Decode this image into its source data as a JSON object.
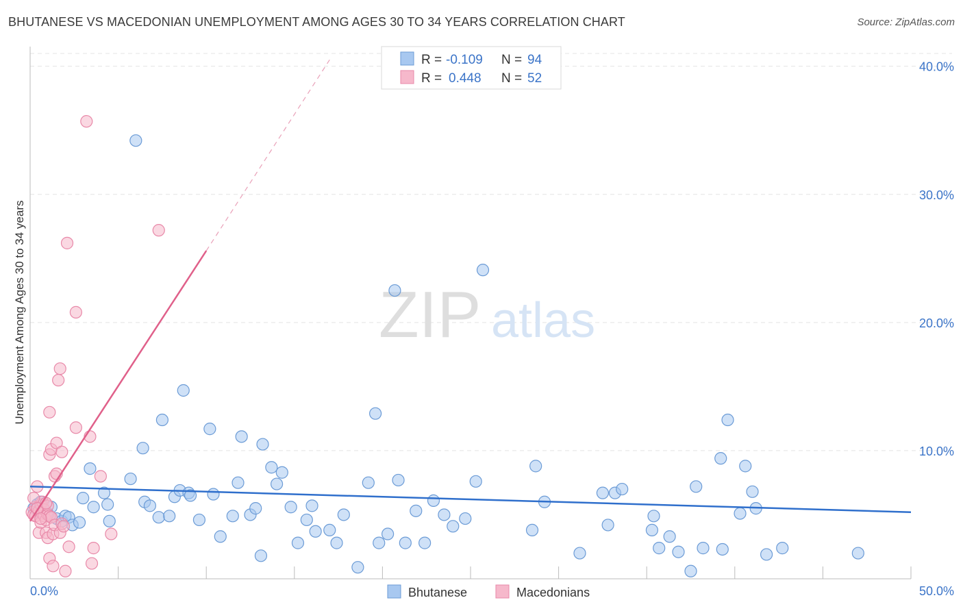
{
  "header": {
    "title": "BHUTANESE VS MACEDONIAN UNEMPLOYMENT AMONG AGES 30 TO 34 YEARS CORRELATION CHART",
    "source": "Source: ZipAtlas.com"
  },
  "watermark": {
    "zip": "ZIP",
    "atlas": "atlas"
  },
  "legend_top": {
    "rows": [
      {
        "r_label": "R =",
        "r_value": "-0.109",
        "n_label": "N =",
        "n_value": "94"
      },
      {
        "r_label": "R =",
        "r_value": "0.448",
        "n_label": "N =",
        "n_value": "52"
      }
    ]
  },
  "legend_bottom": {
    "items": [
      "Bhutanese",
      "Macedonians"
    ]
  },
  "colors": {
    "blue_fill": "#a8c8f0",
    "blue_stroke": "#6b9bd6",
    "blue_line": "#2f6fcc",
    "pink_fill": "#f6b8cb",
    "pink_stroke": "#e888a8",
    "pink_line": "#e0608a",
    "axis_text": "#3b74c8",
    "grid": "#e4e4e4"
  },
  "chart_data": {
    "type": "scatter",
    "title": "BHUTANESE VS MACEDONIAN UNEMPLOYMENT AMONG AGES 30 TO 34 YEARS CORRELATION CHART",
    "xlabel": "",
    "ylabel": "Unemployment Among Ages 30 to 34 years",
    "xlim": [
      0,
      50
    ],
    "ylim": [
      0,
      41
    ],
    "x_tick_labels": [
      "0.0%",
      "50.0%"
    ],
    "y_ticks": [
      10,
      20,
      30,
      40
    ],
    "y_tick_labels": [
      "10.0%",
      "20.0%",
      "30.0%",
      "40.0%"
    ],
    "series": [
      {
        "name": "Bhutanese",
        "r": -0.109,
        "n": 94,
        "trend": {
          "x0": 0,
          "y0": 7.2,
          "x1": 50,
          "y1": 5.2
        },
        "points": [
          [
            0.2,
            5.5
          ],
          [
            0.4,
            5.8
          ],
          [
            0.5,
            5.2
          ],
          [
            0.6,
            6.0
          ],
          [
            0.8,
            5.4
          ],
          [
            1.0,
            5.1
          ],
          [
            1.2,
            5.6
          ],
          [
            1.5,
            4.7
          ],
          [
            1.8,
            4.5
          ],
          [
            2.0,
            4.9
          ],
          [
            2.2,
            4.8
          ],
          [
            2.4,
            4.2
          ],
          [
            2.8,
            4.4
          ],
          [
            3.0,
            6.3
          ],
          [
            3.4,
            8.6
          ],
          [
            3.6,
            5.6
          ],
          [
            4.2,
            6.7
          ],
          [
            4.4,
            5.8
          ],
          [
            4.5,
            4.5
          ],
          [
            5.7,
            7.8
          ],
          [
            6.0,
            34.2
          ],
          [
            6.4,
            10.2
          ],
          [
            6.5,
            6.0
          ],
          [
            6.8,
            5.7
          ],
          [
            7.3,
            4.8
          ],
          [
            7.5,
            12.4
          ],
          [
            7.9,
            4.9
          ],
          [
            8.2,
            6.4
          ],
          [
            8.5,
            6.9
          ],
          [
            8.7,
            14.7
          ],
          [
            9.0,
            6.7
          ],
          [
            9.1,
            6.5
          ],
          [
            9.6,
            4.6
          ],
          [
            10.2,
            11.7
          ],
          [
            10.4,
            6.6
          ],
          [
            10.8,
            3.3
          ],
          [
            11.5,
            4.9
          ],
          [
            11.8,
            7.5
          ],
          [
            12.0,
            11.1
          ],
          [
            12.5,
            5.0
          ],
          [
            12.8,
            5.5
          ],
          [
            13.1,
            1.8
          ],
          [
            13.2,
            10.5
          ],
          [
            13.7,
            8.7
          ],
          [
            14.0,
            7.4
          ],
          [
            14.3,
            8.3
          ],
          [
            14.8,
            5.6
          ],
          [
            15.2,
            2.8
          ],
          [
            15.7,
            4.6
          ],
          [
            16.0,
            5.7
          ],
          [
            16.2,
            3.7
          ],
          [
            17.0,
            3.8
          ],
          [
            17.4,
            2.8
          ],
          [
            17.8,
            5.0
          ],
          [
            18.6,
            0.9
          ],
          [
            19.2,
            7.5
          ],
          [
            19.6,
            12.9
          ],
          [
            19.8,
            2.8
          ],
          [
            20.3,
            3.5
          ],
          [
            20.7,
            22.5
          ],
          [
            20.9,
            7.7
          ],
          [
            21.3,
            2.8
          ],
          [
            21.9,
            5.3
          ],
          [
            22.4,
            2.8
          ],
          [
            22.9,
            6.1
          ],
          [
            23.5,
            5.0
          ],
          [
            24.0,
            4.1
          ],
          [
            24.7,
            4.7
          ],
          [
            25.3,
            7.6
          ],
          [
            25.7,
            24.1
          ],
          [
            28.5,
            3.8
          ],
          [
            28.7,
            8.8
          ],
          [
            29.2,
            6.0
          ],
          [
            31.2,
            2.0
          ],
          [
            32.5,
            6.7
          ],
          [
            32.8,
            4.2
          ],
          [
            33.2,
            6.7
          ],
          [
            33.6,
            7.0
          ],
          [
            35.3,
            3.8
          ],
          [
            35.4,
            4.9
          ],
          [
            35.7,
            2.4
          ],
          [
            36.3,
            3.3
          ],
          [
            36.8,
            2.1
          ],
          [
            37.5,
            0.6
          ],
          [
            37.8,
            7.2
          ],
          [
            38.2,
            2.4
          ],
          [
            39.2,
            9.4
          ],
          [
            39.3,
            2.3
          ],
          [
            39.6,
            12.4
          ],
          [
            40.3,
            5.1
          ],
          [
            40.6,
            8.8
          ],
          [
            41.0,
            6.8
          ],
          [
            41.2,
            5.5
          ],
          [
            41.8,
            1.9
          ],
          [
            42.7,
            2.4
          ],
          [
            47.0,
            2.0
          ]
        ]
      },
      {
        "name": "Macedonians",
        "r": 0.448,
        "n": 52,
        "trend": {
          "x0": 0,
          "y0": 4.5,
          "x1": 10,
          "y1": 25.6
        },
        "trend_extension": {
          "x0": 10,
          "y0": 25.6,
          "x1": 17,
          "y1": 40.5
        },
        "points": [
          [
            0.1,
            5.2
          ],
          [
            0.2,
            5.0
          ],
          [
            0.3,
            5.6
          ],
          [
            0.3,
            4.9
          ],
          [
            0.4,
            7.2
          ],
          [
            0.5,
            5.3
          ],
          [
            0.5,
            3.6
          ],
          [
            0.6,
            5.8
          ],
          [
            0.6,
            4.4
          ],
          [
            0.7,
            5.1
          ],
          [
            0.7,
            6.0
          ],
          [
            0.8,
            4.9
          ],
          [
            0.8,
            5.4
          ],
          [
            0.9,
            4.6
          ],
          [
            0.9,
            3.6
          ],
          [
            1.0,
            5.0
          ],
          [
            1.0,
            5.7
          ],
          [
            1.0,
            3.2
          ],
          [
            1.1,
            1.6
          ],
          [
            1.1,
            4.9
          ],
          [
            1.1,
            13.0
          ],
          [
            1.1,
            9.7
          ],
          [
            1.2,
            10.1
          ],
          [
            1.2,
            4.8
          ],
          [
            1.3,
            1.0
          ],
          [
            1.3,
            3.5
          ],
          [
            1.4,
            4.2
          ],
          [
            1.4,
            8.0
          ],
          [
            1.5,
            10.6
          ],
          [
            1.5,
            8.2
          ],
          [
            1.6,
            15.5
          ],
          [
            1.7,
            16.4
          ],
          [
            1.7,
            3.6
          ],
          [
            1.8,
            4.3
          ],
          [
            1.8,
            9.9
          ],
          [
            1.9,
            4.1
          ],
          [
            2.0,
            0.6
          ],
          [
            2.1,
            26.2
          ],
          [
            2.2,
            2.5
          ],
          [
            2.6,
            20.8
          ],
          [
            2.6,
            11.8
          ],
          [
            3.2,
            35.7
          ],
          [
            3.4,
            11.1
          ],
          [
            3.5,
            1.2
          ],
          [
            3.6,
            2.4
          ],
          [
            4.0,
            8.0
          ],
          [
            4.6,
            3.5
          ],
          [
            7.3,
            27.2
          ],
          [
            0.2,
            6.3
          ],
          [
            0.4,
            5.5
          ],
          [
            0.6,
            4.7
          ],
          [
            0.9,
            5.9
          ]
        ]
      }
    ]
  }
}
